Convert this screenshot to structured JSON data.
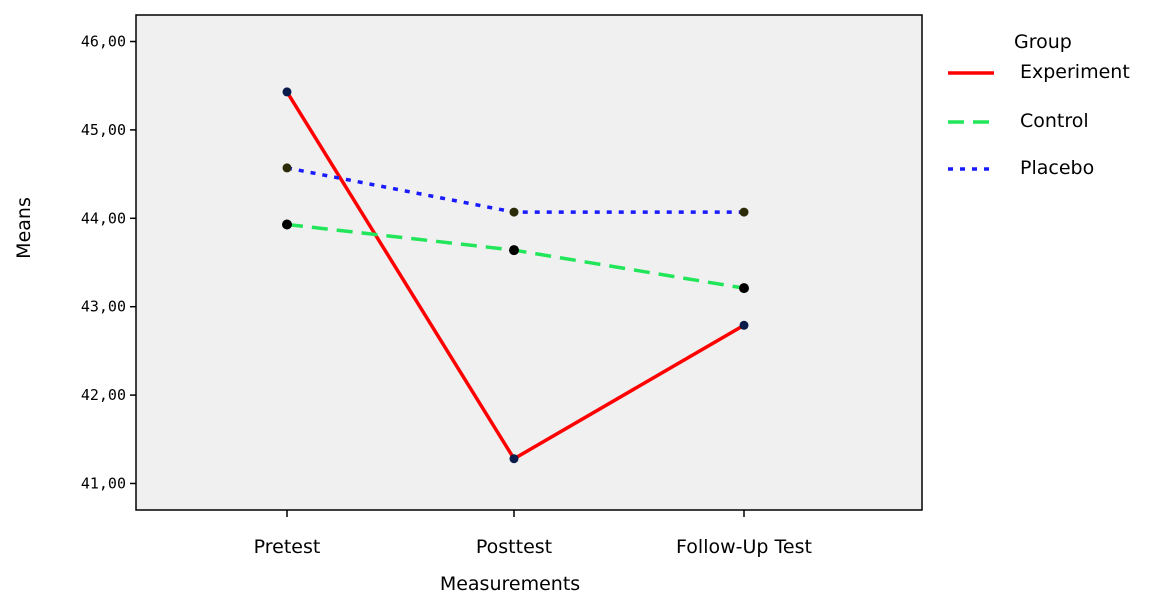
{
  "chart_data": {
    "type": "line",
    "title": "",
    "xlabel": "Measurements",
    "ylabel": "Means",
    "categories": [
      "Pretest",
      "Posttest",
      "Follow-Up Test"
    ],
    "ylim": [
      40.7,
      46.3
    ],
    "yticks": [
      "41,00",
      "42,00",
      "43,00",
      "44,00",
      "45,00",
      "46,00"
    ],
    "ytick_values": [
      41,
      42,
      43,
      44,
      45,
      46
    ],
    "grid": false,
    "plot_background": "#f0f0f0",
    "legend": {
      "title": "Group",
      "placement": "outside-right"
    },
    "series": [
      {
        "name": "Experiment",
        "color": "#ff0000",
        "dash": "solid",
        "values": [
          45.43,
          41.28,
          42.79
        ]
      },
      {
        "name": "Control",
        "color": "#22e65a",
        "dash": "dashed",
        "values": [
          43.93,
          43.64,
          43.21
        ]
      },
      {
        "name": "Placebo",
        "color": "#1a1aff",
        "dash": "dotted",
        "values": [
          44.57,
          44.07,
          44.07
        ]
      }
    ]
  }
}
